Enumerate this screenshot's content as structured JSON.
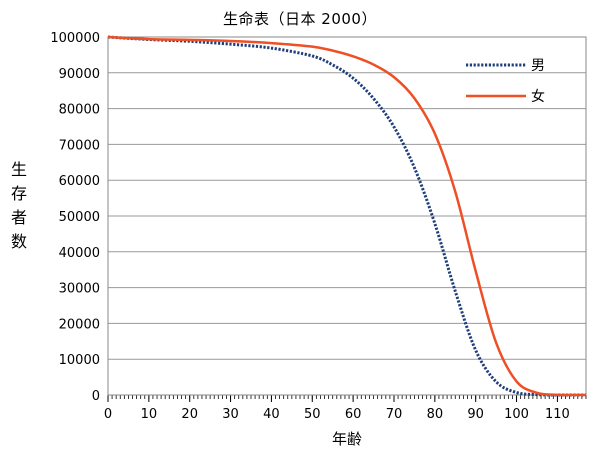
{
  "chart_data": {
    "type": "line",
    "title": "生命表（日本 2000）",
    "xlabel": "年齢",
    "ylabel": "生存者数",
    "xlim": [
      0,
      117
    ],
    "ylim": [
      0,
      100000
    ],
    "xticks": [
      0,
      10,
      20,
      30,
      40,
      50,
      60,
      70,
      80,
      90,
      100,
      110
    ],
    "yticks": [
      0,
      10000,
      20000,
      30000,
      40000,
      50000,
      60000,
      70000,
      80000,
      90000,
      100000
    ],
    "grid": true,
    "legend_position": "top-right",
    "x": [
      0,
      10,
      20,
      30,
      40,
      50,
      55,
      60,
      65,
      70,
      75,
      80,
      85,
      90,
      95,
      100,
      105,
      110,
      117
    ],
    "series": [
      {
        "name": "男",
        "color": "#1f3f7a",
        "style": "dotted",
        "values": [
          100000,
          99300,
          98800,
          98000,
          96900,
          94700,
          92200,
          88500,
          82800,
          74900,
          63500,
          47900,
          29000,
          12500,
          3700,
          700,
          100,
          10,
          0
        ]
      },
      {
        "name": "女",
        "color": "#ee4f24",
        "style": "solid",
        "values": [
          100000,
          99400,
          99200,
          98900,
          98300,
          97300,
          96200,
          94600,
          92300,
          88800,
          82900,
          73000,
          56800,
          34600,
          14600,
          3800,
          600,
          50,
          0
        ]
      }
    ]
  }
}
